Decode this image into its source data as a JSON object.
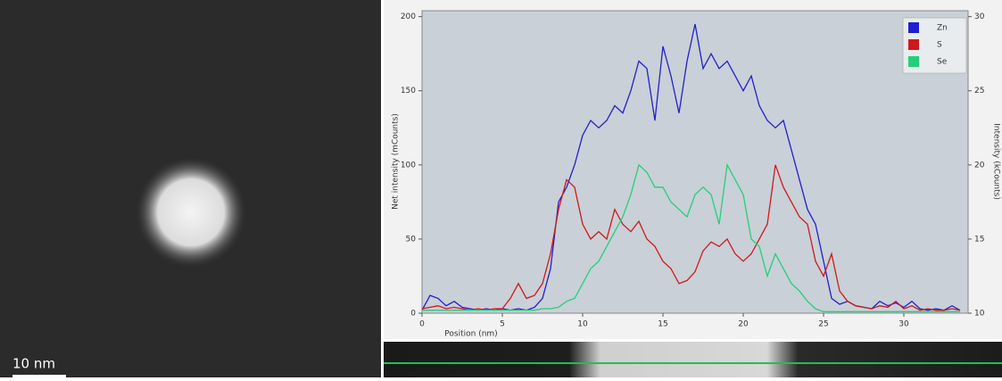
{
  "scale_bar": "10 nm",
  "chart_data": {
    "type": "line",
    "x_label": "Position (nm)",
    "y_label": "Net intensity (mCounts)",
    "y2_label": "Intensity (kCounts)",
    "x": [
      0,
      0.5,
      1,
      1.5,
      2,
      2.5,
      3,
      3.5,
      4,
      4.5,
      5,
      5.5,
      6,
      6.5,
      7,
      7.5,
      8,
      8.5,
      9,
      9.5,
      10,
      10.5,
      11,
      11.5,
      12,
      12.5,
      13,
      13.5,
      14,
      14.5,
      15,
      15.5,
      16,
      16.5,
      17,
      17.5,
      18,
      18.5,
      19,
      19.5,
      20,
      20.5,
      21,
      21.5,
      22,
      22.5,
      23,
      23.5,
      24,
      24.5,
      25,
      25.5,
      26,
      26.5,
      27,
      27.5,
      28,
      28.5,
      29,
      29.5,
      30,
      30.5,
      31,
      31.5,
      32,
      32.5,
      33,
      33.5
    ],
    "series": [
      {
        "name": "Zn",
        "color": "#1f1fd0",
        "values": [
          2,
          12,
          10,
          5,
          8,
          4,
          3,
          2,
          3,
          2,
          3,
          2,
          3,
          2,
          4,
          10,
          30,
          75,
          85,
          100,
          120,
          130,
          125,
          130,
          140,
          135,
          150,
          170,
          165,
          130,
          180,
          160,
          135,
          170,
          195,
          165,
          175,
          165,
          170,
          160,
          150,
          160,
          140,
          130,
          125,
          130,
          110,
          90,
          70,
          60,
          35,
          10,
          6,
          8,
          5,
          4,
          3,
          8,
          5,
          7,
          4,
          8,
          3,
          2,
          3,
          2,
          5,
          2
        ]
      },
      {
        "name": "S",
        "color": "#d01818",
        "values": [
          3,
          4,
          5,
          3,
          4,
          3,
          2,
          3,
          2,
          3,
          3,
          10,
          20,
          10,
          12,
          20,
          40,
          70,
          90,
          85,
          60,
          50,
          55,
          50,
          70,
          60,
          55,
          62,
          50,
          45,
          35,
          30,
          20,
          22,
          28,
          42,
          48,
          45,
          50,
          40,
          35,
          40,
          50,
          60,
          100,
          85,
          75,
          65,
          60,
          35,
          25,
          40,
          15,
          8,
          5,
          4,
          3,
          5,
          4,
          8,
          3,
          5,
          2,
          3,
          2,
          2,
          3,
          2
        ]
      },
      {
        "name": "Se",
        "color": "#22d07a",
        "axis": "y2",
        "values": [
          10.2,
          10.2,
          10.2,
          10.2,
          10.2,
          10.2,
          10.2,
          10.2,
          10.2,
          10.2,
          10.2,
          10.2,
          10.2,
          10.2,
          10.2,
          10.3,
          10.3,
          10.4,
          10.8,
          11,
          12,
          13,
          13.5,
          14.5,
          15.5,
          16.5,
          18,
          20,
          19.5,
          18.5,
          18.5,
          17.5,
          17,
          16.5,
          18,
          18.5,
          18,
          16,
          20,
          19,
          18,
          15,
          14.5,
          12.5,
          14,
          13,
          12,
          11.5,
          10.8,
          10.3,
          10.1,
          10.1,
          10.1,
          10.1,
          10.1,
          10.1,
          10.1,
          10.1,
          10.1,
          10.1,
          10.1,
          10.1,
          10.1,
          10.1,
          10.1,
          10.1,
          10.1,
          10.1
        ]
      }
    ],
    "xlim": [
      0,
      34
    ],
    "xticks": [
      0,
      5,
      10,
      15,
      20,
      25,
      30
    ],
    "ylim": [
      0,
      204
    ],
    "yticks": [
      0,
      50,
      100,
      150,
      200
    ],
    "y2lim": [
      10,
      30.4
    ],
    "y2ticks": [
      10,
      15,
      20,
      25,
      30
    ],
    "legend": "top-right"
  }
}
